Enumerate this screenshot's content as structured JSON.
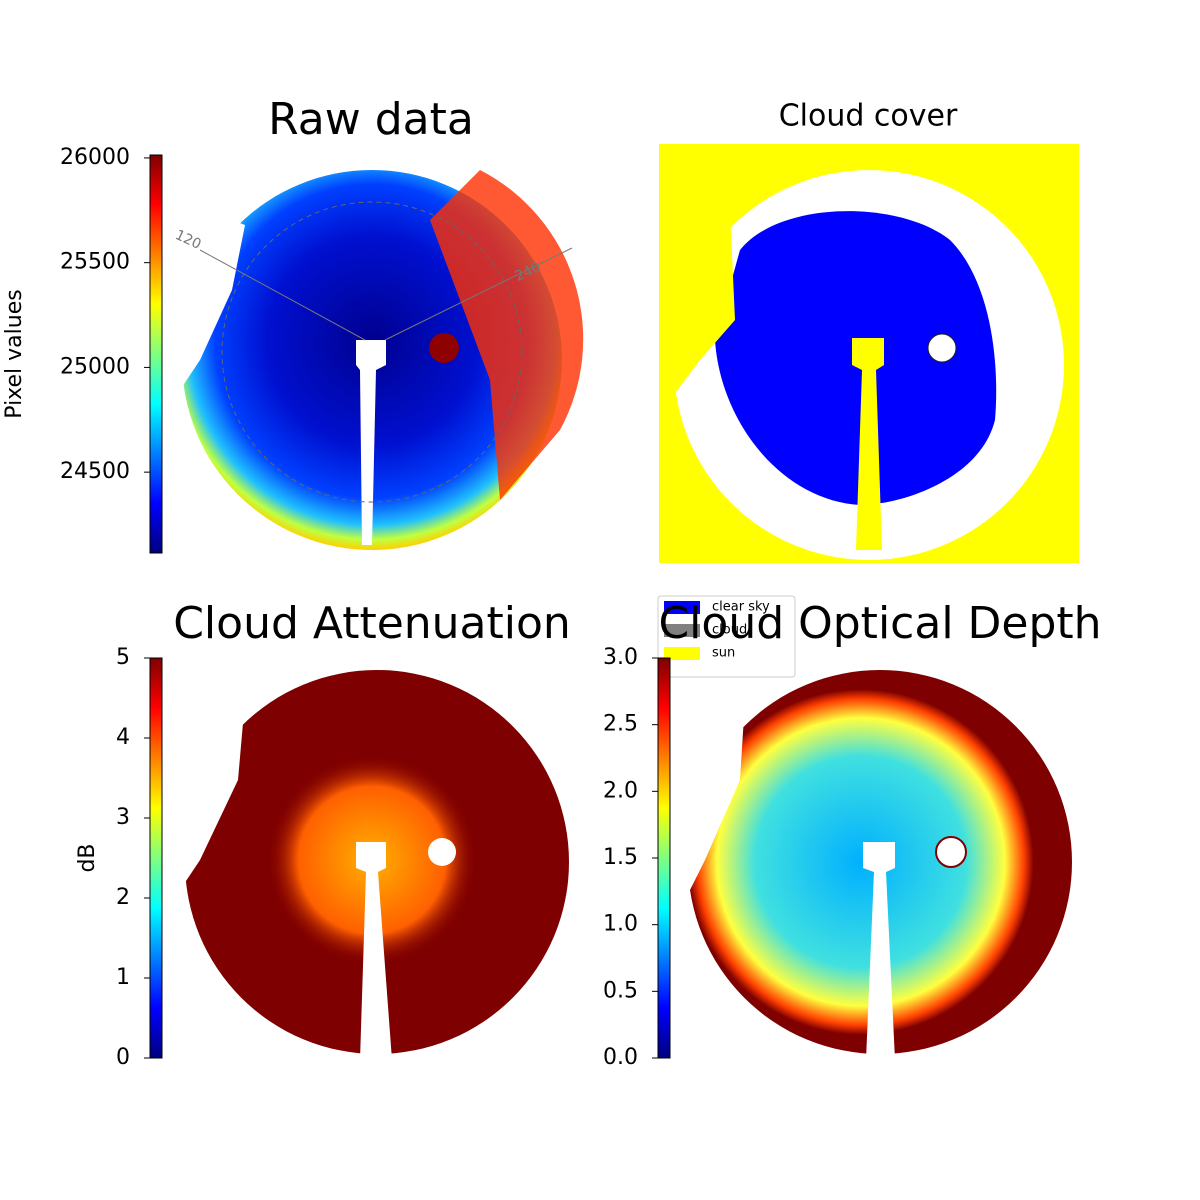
{
  "chart_data": [
    {
      "type": "image",
      "title": "Raw data",
      "annotations": [
        "120",
        "240"
      ],
      "colorbar": {
        "label": "Pixel values",
        "lim": [
          24114,
          26014
        ],
        "ticks": [
          24500,
          25000,
          25500,
          26000
        ]
      }
    },
    {
      "type": "image",
      "title": "Cloud cover",
      "legend": {
        "categories": [
          "clear sky",
          "cloud",
          "sun"
        ],
        "colors": [
          "#0000ff",
          "#808080",
          "#ffff00"
        ]
      }
    },
    {
      "type": "image",
      "title": "Cloud Attenuation",
      "colorbar": {
        "label": "dB",
        "lim": [
          0,
          5
        ],
        "ticks": [
          0,
          1,
          2,
          3,
          4,
          5
        ]
      }
    },
    {
      "type": "image",
      "title": "Cloud Optical Depth",
      "colorbar": {
        "lim": [
          0,
          3
        ],
        "ticks": [
          {
            "value": 0,
            "label": "0.0"
          },
          {
            "value": 0.5,
            "label": "0.5"
          },
          {
            "value": 1,
            "label": "1.0"
          },
          {
            "value": 1.5,
            "label": "1.5"
          },
          {
            "value": 2,
            "label": "2.0"
          },
          {
            "value": 2.5,
            "label": "2.5"
          },
          {
            "value": 3,
            "label": "3.0"
          }
        ]
      }
    }
  ]
}
